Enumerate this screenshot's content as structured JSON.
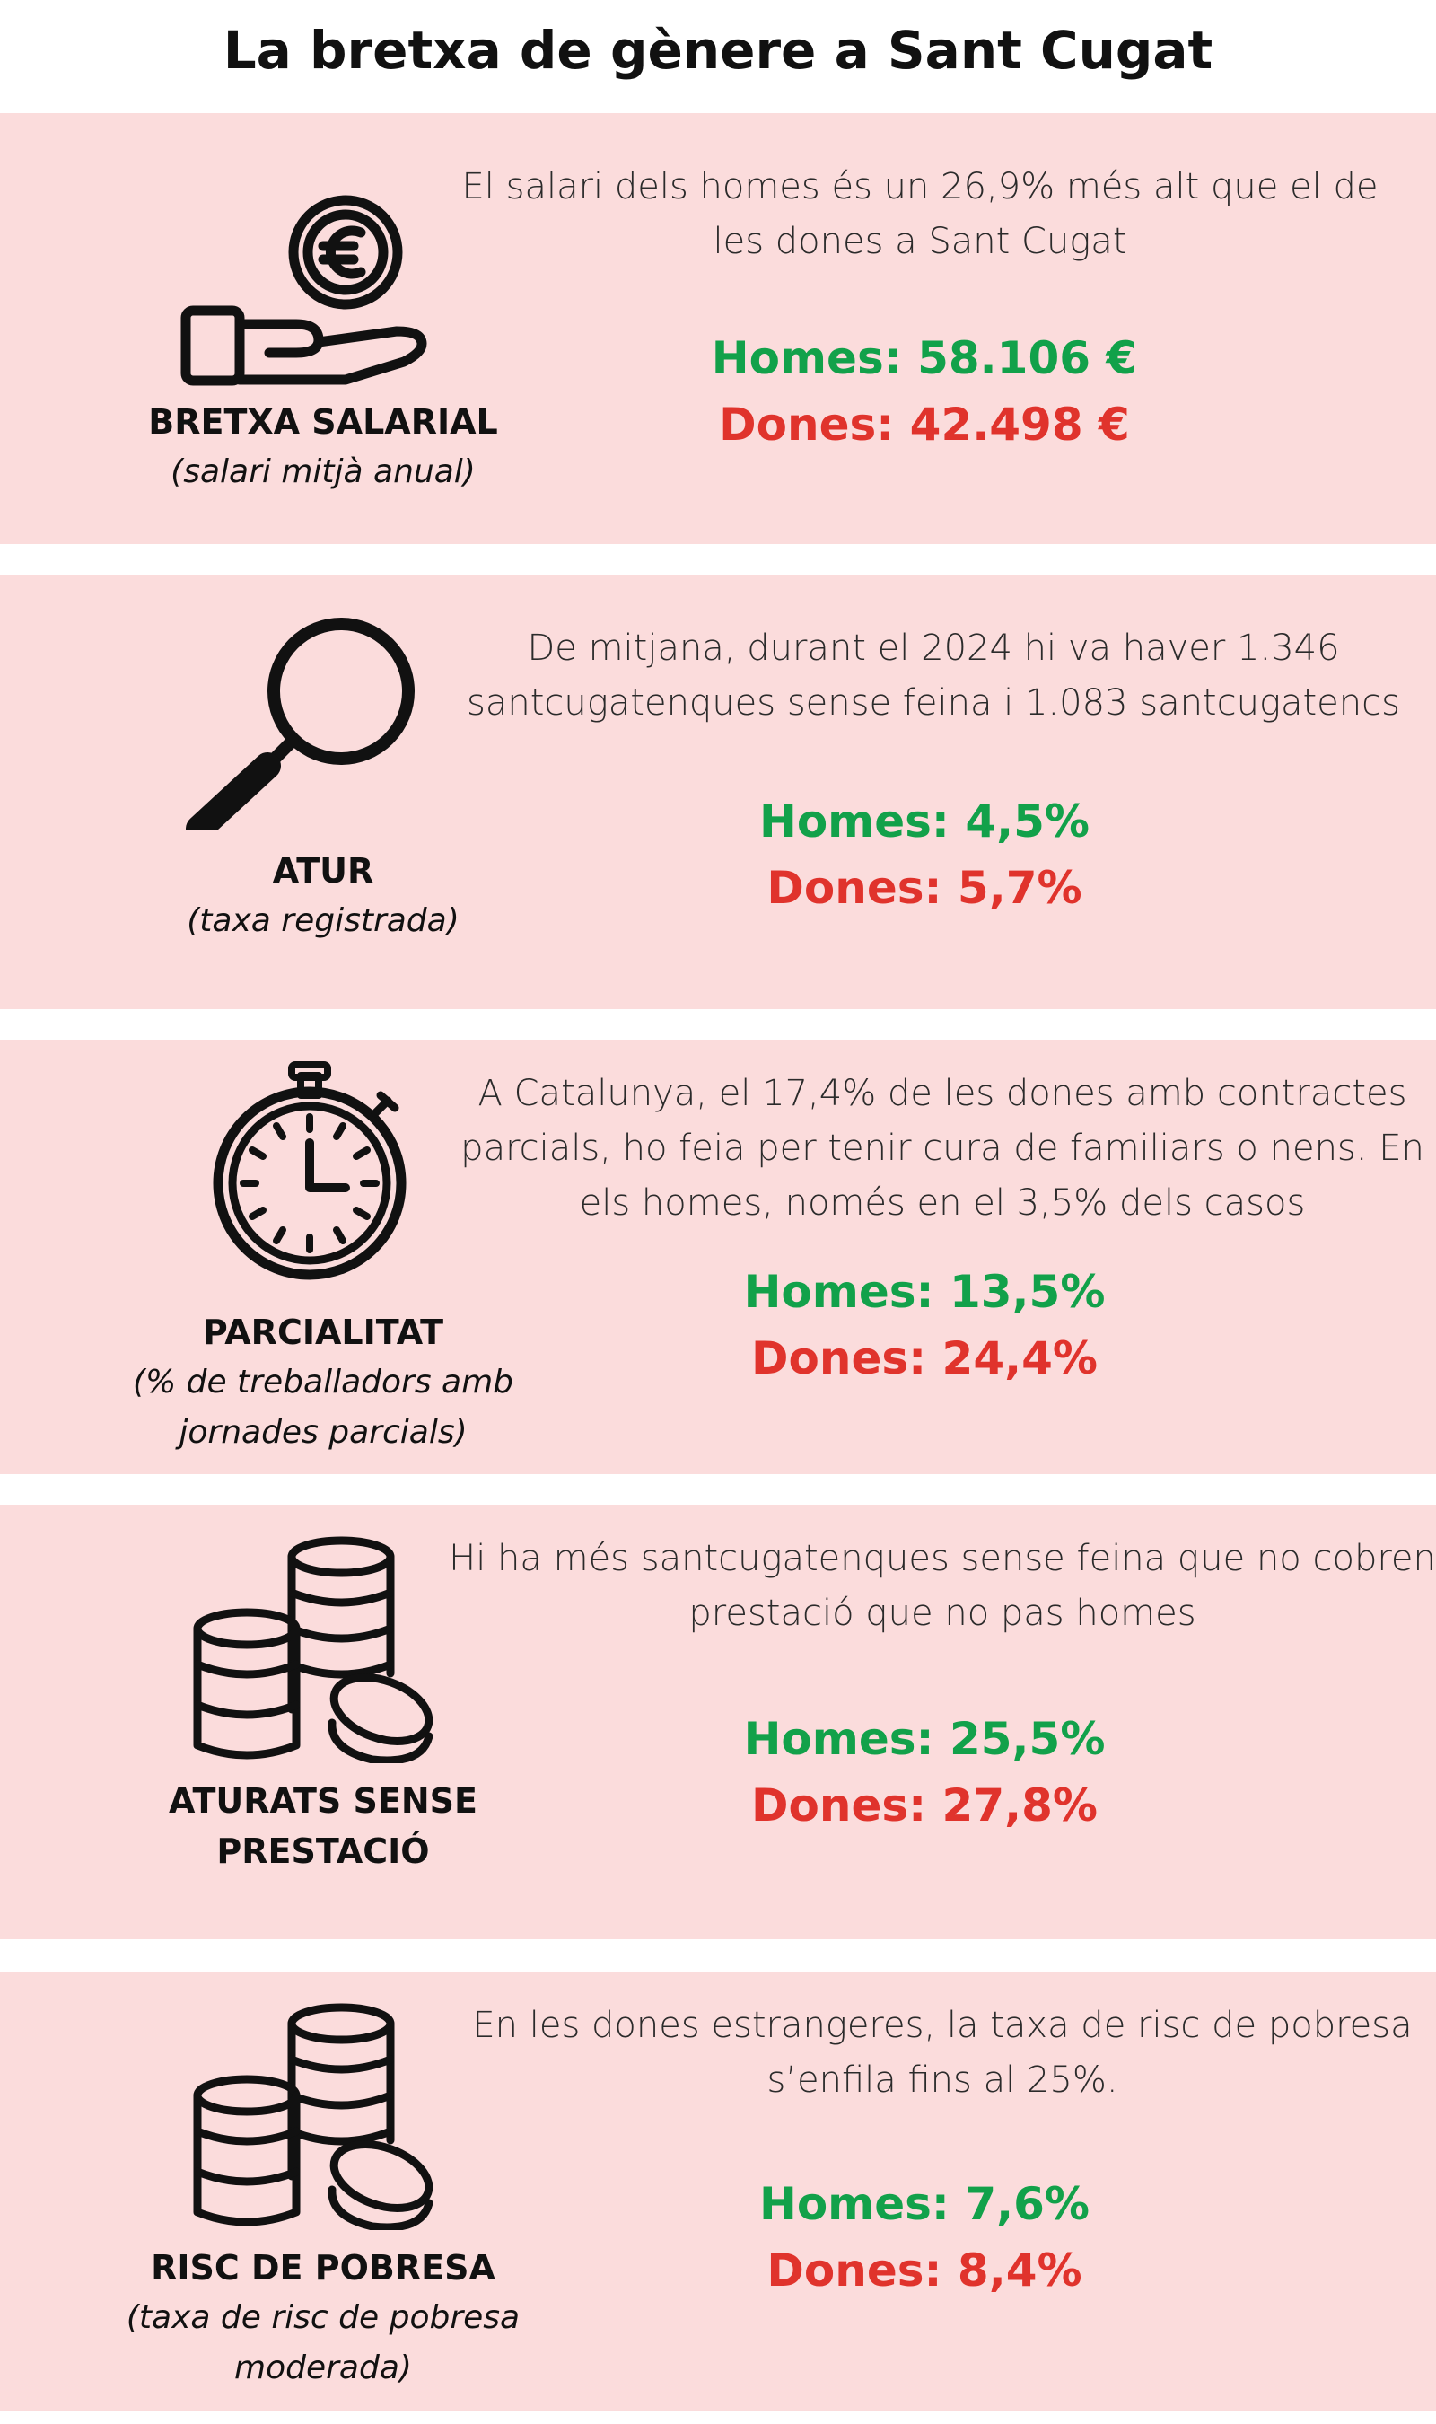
{
  "title": "La bretxa de gènere a Sant Cugat",
  "colors": {
    "panel": "#fbdcdc",
    "men": "#12a14a",
    "women": "#e0332c"
  },
  "sections": [
    {
      "icon": "hand-euro-coin-icon",
      "name": "BRETXA SALARIAL",
      "sub": "(salari mitjà anual)",
      "description": "El salari dels homes és un 26,9% més alt que el de les dones a Sant Cugat",
      "men": "Homes: 58.106 €",
      "women": "Dones: 42.498 €"
    },
    {
      "icon": "magnifying-glass-icon",
      "name": "ATUR",
      "sub": "(taxa registrada)",
      "description": "De mitjana, durant el 2024 hi va haver 1.346 santcugatenques sense feina i 1.083 santcugatencs",
      "men": "Homes: 4,5%",
      "women": "Dones: 5,7%"
    },
    {
      "icon": "stopwatch-icon",
      "name": "PARCIALITAT",
      "sub": "(% de treballadors amb jornades parcials)",
      "description": "A  Catalunya, el 17,4% de les dones amb contractes parcials, ho feia per tenir cura de familiars o nens. En els homes, només en el 3,5% dels casos",
      "men": "Homes: 13,5%",
      "women": "Dones: 24,4%"
    },
    {
      "icon": "coin-stacks-icon",
      "name": "ATURATS SENSE PRESTACIÓ",
      "sub": "",
      "description": "Hi ha més santcugatenques sense feina que no cobren prestació que no pas homes",
      "men": "Homes: 25,5%",
      "women": "Dones: 27,8%"
    },
    {
      "icon": "coin-stacks-icon",
      "name": "RISC DE POBRESA",
      "sub": "(taxa de risc de pobresa moderada)",
      "description": "En les dones estrangeres, la taxa de risc de pobresa s’enfila fins al 25%.",
      "men": "Homes: 7,6%",
      "women": "Dones: 8,4%"
    }
  ]
}
